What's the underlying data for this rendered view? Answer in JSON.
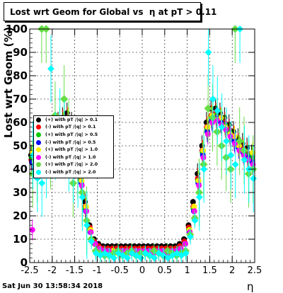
{
  "header": {
    "title_main": "Lost wrt Geom for Global vs",
    "title_eta": "η",
    "title_tail": "at pT > 0.11"
  },
  "footer": {
    "timestamp": "Sat Jun 30 13:58:34 2018"
  },
  "chart_data": {
    "type": "scatter",
    "title": "Lost wrt Geom for Global vs η at pT > 0.11",
    "xlabel": "η",
    "ylabel": "Lost wrt Geom (%)",
    "xlim": [
      -2.5,
      2.5
    ],
    "ylim": [
      0,
      100
    ],
    "x_ticks": [
      "-2.5",
      "-2",
      "-1.5",
      "-1",
      "-0.5",
      "0",
      "0.5",
      "1",
      "1.5",
      "2",
      "2.5"
    ],
    "y_ticks": [
      "0",
      "10",
      "20",
      "30",
      "40",
      "50",
      "60",
      "70",
      "80",
      "90",
      "100"
    ],
    "grid": true,
    "legend_position": "left-middle",
    "x": [
      -2.45,
      -2.35,
      -2.25,
      -2.15,
      -2.05,
      -1.95,
      -1.85,
      -1.75,
      -1.65,
      -1.55,
      -1.45,
      -1.35,
      -1.25,
      -1.15,
      -1.05,
      -0.95,
      -0.85,
      -0.75,
      -0.65,
      -0.55,
      -0.45,
      -0.35,
      -0.25,
      -0.15,
      -0.05,
      0.05,
      0.15,
      0.25,
      0.35,
      0.45,
      0.55,
      0.65,
      0.75,
      0.85,
      0.95,
      1.05,
      1.15,
      1.25,
      1.35,
      1.45,
      1.55,
      1.65,
      1.75,
      1.85,
      1.95,
      2.05,
      2.15,
      2.25,
      2.35,
      2.45
    ],
    "series": [
      {
        "name": "(+) with pT /|q| > 0.1",
        "color": "#000000",
        "values": [
          46,
          48,
          50,
          52,
          55,
          58,
          60,
          62,
          64,
          60,
          50,
          38,
          26,
          16,
          10,
          8,
          7,
          7,
          7,
          7,
          7,
          7,
          7,
          7,
          7,
          7,
          7,
          7,
          7,
          7,
          7,
          7,
          7,
          8,
          10,
          16,
          26,
          38,
          50,
          60,
          66,
          66,
          64,
          62,
          59,
          56,
          53,
          51,
          49,
          46
        ]
      },
      {
        "name": "(-) with pT /|q| > 0.1",
        "color": "#ff0000",
        "values": [
          44,
          47,
          49,
          51,
          54,
          57,
          59,
          61,
          62,
          58,
          48,
          36,
          24,
          15,
          9,
          7,
          6,
          6,
          6,
          6,
          6,
          6,
          6,
          6,
          6,
          6,
          6,
          6,
          6,
          6,
          6,
          6,
          6,
          7,
          9,
          15,
          24,
          36,
          48,
          58,
          63,
          64,
          62,
          60,
          57,
          54,
          51,
          49,
          47,
          44
        ]
      },
      {
        "name": "(+) with pT /|q| > 0.5",
        "color": "#00cc00",
        "values": [
          45,
          46,
          49,
          50,
          52,
          56,
          58,
          60,
          61,
          57,
          47,
          35,
          23,
          14,
          8,
          6,
          5,
          5,
          5,
          5,
          5,
          5,
          5,
          5,
          5,
          5,
          5,
          5,
          5,
          5,
          5,
          5,
          5,
          6,
          8,
          14,
          23,
          35,
          47,
          57,
          62,
          63,
          61,
          59,
          56,
          53,
          50,
          48,
          46,
          45
        ]
      },
      {
        "name": "(-) with pT /|q| > 0.5",
        "color": "#0000ff",
        "values": [
          43,
          45,
          48,
          49,
          51,
          55,
          57,
          59,
          60,
          56,
          46,
          34,
          22,
          13,
          8,
          6,
          5,
          5,
          5,
          5,
          5,
          5,
          5,
          5,
          5,
          5,
          5,
          5,
          5,
          5,
          5,
          5,
          5,
          6,
          8,
          13,
          22,
          34,
          46,
          56,
          61,
          62,
          60,
          58,
          55,
          52,
          49,
          47,
          45,
          43
        ]
      },
      {
        "name": "(+) with pT /|q| > 1.0",
        "color": "#ffee00",
        "values": [
          47,
          44,
          50,
          48,
          53,
          55,
          57,
          60,
          62,
          58,
          48,
          35,
          24,
          14,
          8,
          6,
          5,
          5,
          5,
          4,
          5,
          5,
          5,
          5,
          5,
          5,
          4,
          5,
          5,
          5,
          5,
          5,
          5,
          6,
          8,
          14,
          24,
          35,
          48,
          58,
          63,
          61,
          62,
          58,
          55,
          54,
          50,
          48,
          44,
          47
        ]
      },
      {
        "name": "(-) with pT /|q| > 1.0",
        "color": "#ff00ff",
        "values": [
          14,
          43,
          47,
          48,
          50,
          54,
          56,
          58,
          59,
          55,
          45,
          33,
          22,
          13,
          8,
          6,
          5,
          5,
          4,
          5,
          5,
          5,
          4,
          5,
          5,
          5,
          5,
          4,
          5,
          5,
          4,
          5,
          5,
          6,
          8,
          13,
          22,
          33,
          45,
          55,
          60,
          61,
          59,
          57,
          54,
          51,
          48,
          46,
          44,
          42
        ]
      },
      {
        "name": "(+) with pT /|q| > 2.0",
        "color": "#66dd44",
        "values": [
          38,
          40,
          100,
          100,
          46,
          63,
          52,
          70,
          55,
          34,
          42,
          30,
          18,
          10,
          5,
          4,
          3,
          3,
          4,
          5,
          3,
          4,
          5,
          3,
          4,
          4,
          3,
          5,
          4,
          3,
          5,
          4,
          3,
          4,
          5,
          12,
          19,
          30,
          42,
          66,
          62,
          56,
          50,
          45,
          40,
          100,
          52,
          48,
          38,
          40
        ]
      },
      {
        "name": "(-) with pT /|q| > 2.0",
        "color": "#00ffff",
        "values": [
          46,
          36,
          34,
          42,
          83,
          50,
          60,
          55,
          45,
          40,
          38,
          28,
          16,
          9,
          4,
          3,
          4,
          3,
          2,
          4,
          3,
          2,
          4,
          3,
          2,
          4,
          3,
          2,
          4,
          3,
          2,
          3,
          4,
          3,
          4,
          11,
          18,
          28,
          40,
          90,
          70,
          65,
          58,
          52,
          46,
          42,
          100,
          44,
          40,
          36
        ]
      }
    ]
  }
}
